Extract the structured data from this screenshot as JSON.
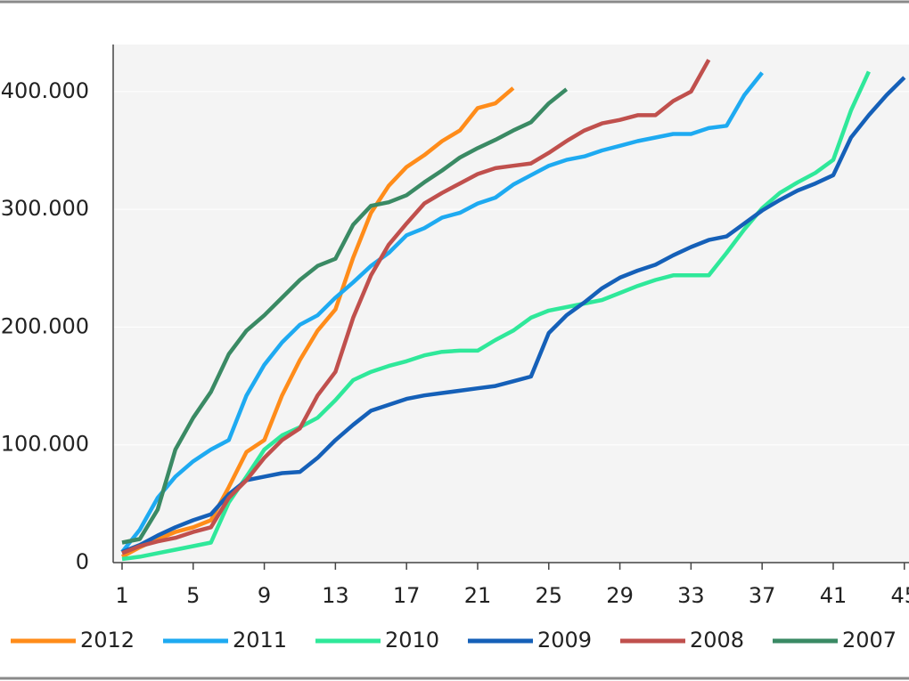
{
  "chart_data": {
    "type": "line",
    "x": [
      1,
      2,
      3,
      4,
      5,
      6,
      7,
      8,
      9,
      10,
      11,
      12,
      13,
      14,
      15,
      16,
      17,
      18,
      19,
      20,
      21,
      22,
      23,
      24,
      25,
      26,
      27,
      28,
      29,
      30,
      31,
      32,
      33,
      34,
      35,
      36,
      37,
      38,
      39,
      40,
      41,
      42,
      43,
      44,
      45
    ],
    "xlim": [
      0.5,
      45.5
    ],
    "xticks": [
      1,
      5,
      9,
      13,
      17,
      21,
      25,
      29,
      33,
      37,
      41,
      45
    ],
    "ylim": [
      0,
      440000
    ],
    "yticks": [
      0,
      {
        "value": 100000,
        "label": "100.000"
      },
      {
        "value": 200000,
        "label": "200.000"
      },
      {
        "value": 300000,
        "label": "300.000"
      },
      {
        "value": 400000,
        "label": "400.000"
      }
    ],
    "grid": true,
    "legend": "bottom",
    "series": [
      {
        "name": "2012",
        "color": "#ff8c1a",
        "values": [
          5000,
          13000,
          20000,
          26000,
          30000,
          36000,
          64000,
          94000,
          104000,
          142000,
          172000,
          197000,
          215000,
          259000,
          297000,
          320000,
          336000,
          346000,
          358000,
          367000,
          386000,
          390000,
          403000,
          null,
          null,
          null,
          null,
          null,
          null,
          null,
          null,
          null,
          null,
          null,
          null,
          null,
          null,
          null,
          null,
          null,
          null,
          null,
          null,
          null,
          null
        ]
      },
      {
        "name": "2011",
        "color": "#1eaaf1",
        "values": [
          9000,
          28000,
          55000,
          73000,
          86000,
          96000,
          104000,
          142000,
          168000,
          187000,
          202000,
          210000,
          225000,
          238000,
          252000,
          263000,
          278000,
          284000,
          293000,
          297000,
          305000,
          310000,
          321000,
          329000,
          337000,
          342000,
          345000,
          350000,
          354000,
          358000,
          361000,
          364000,
          364000,
          369000,
          371000,
          397000,
          416000,
          null,
          null,
          null,
          null,
          null,
          null,
          null,
          null
        ]
      },
      {
        "name": "2010",
        "color": "#2fe89a",
        "values": [
          3000,
          5000,
          8000,
          11000,
          14000,
          17000,
          51000,
          73000,
          96000,
          108000,
          115000,
          123000,
          138000,
          155000,
          162000,
          167000,
          171000,
          176000,
          179000,
          180000,
          180000,
          189000,
          197000,
          208000,
          214000,
          217000,
          220000,
          223000,
          229000,
          235000,
          240000,
          244000,
          244000,
          244000,
          263000,
          283000,
          301000,
          314000,
          323000,
          331000,
          342000,
          384000,
          417000,
          null,
          null
        ]
      },
      {
        "name": "2009",
        "color": "#1560b8",
        "values": [
          9000,
          15000,
          23000,
          30000,
          36000,
          41000,
          58000,
          70000,
          73000,
          76000,
          77000,
          89000,
          104000,
          117000,
          129000,
          134000,
          139000,
          142000,
          144000,
          146000,
          148000,
          150000,
          154000,
          158000,
          195000,
          210000,
          221000,
          233000,
          242000,
          248000,
          253000,
          261000,
          268000,
          274000,
          277000,
          288000,
          299000,
          308000,
          316000,
          322000,
          329000,
          361000,
          380000,
          397000,
          412000
        ]
      },
      {
        "name": "2008",
        "color": "#c0504d",
        "values": [
          8000,
          14000,
          18000,
          21000,
          26000,
          30000,
          55000,
          70000,
          89000,
          104000,
          114000,
          142000,
          162000,
          208000,
          244000,
          270000,
          288000,
          305000,
          314000,
          322000,
          330000,
          335000,
          337000,
          339000,
          348000,
          358000,
          367000,
          373000,
          376000,
          380000,
          380000,
          392000,
          400000,
          427000,
          null,
          null,
          null,
          null,
          null,
          null,
          null,
          null,
          null,
          null,
          null
        ]
      },
      {
        "name": "2007",
        "color": "#3a8a64",
        "values": [
          17000,
          20000,
          45000,
          96000,
          123000,
          145000,
          177000,
          197000,
          210000,
          225000,
          240000,
          252000,
          258000,
          287000,
          303000,
          306000,
          312000,
          323000,
          333000,
          344000,
          352000,
          359000,
          367000,
          374000,
          390000,
          402000,
          null,
          null,
          null,
          null,
          null,
          null,
          null,
          null,
          null,
          null,
          null,
          null,
          null,
          null,
          null,
          null,
          null,
          null,
          null
        ]
      }
    ]
  }
}
